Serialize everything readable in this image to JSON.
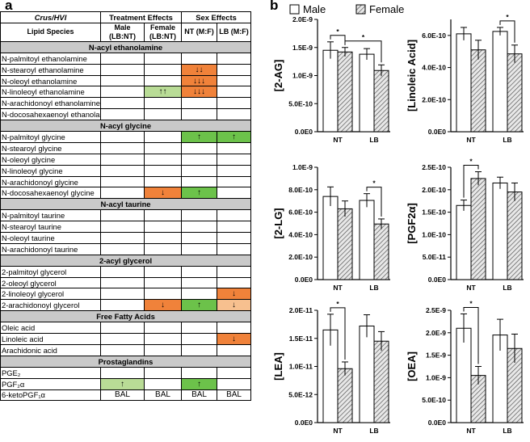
{
  "panel_a_label": "a",
  "panel_b_label": "b",
  "table": {
    "corner": "Crus/HVI",
    "group_headers": [
      "Treatment Effects",
      "Sex Effects"
    ],
    "col_header_title": "Lipid Species",
    "col_headers": [
      "Male (LB:NT)",
      "Female (LB:NT)",
      "NT (M:F)",
      "LB (M:F)"
    ],
    "rows": [
      {
        "type": "section",
        "label": "N-acyl ethanolamine"
      },
      {
        "label": "N-palmitoyl ethanolamine",
        "cells": [
          "",
          "",
          "",
          ""
        ]
      },
      {
        "label": "N-stearoyl ethanolamine",
        "cells": [
          "",
          "",
          "↓↓",
          ""
        ]
      },
      {
        "label": "N-oleoyl ethanolamine",
        "cells": [
          "",
          "",
          "↓↓↓",
          ""
        ]
      },
      {
        "label": "N-linoleoyl ethanolamine",
        "cells": [
          "",
          "↑↑",
          "↓↓↓",
          ""
        ]
      },
      {
        "label": "N-arachidonoyl ethanolamine",
        "cells": [
          "",
          "",
          "",
          ""
        ],
        "tall": true
      },
      {
        "label": "N-docosahexaenoyl ethanolamine",
        "cells": [
          "",
          "",
          "",
          ""
        ],
        "tall": true
      },
      {
        "type": "section",
        "label": "N-acyl glycine"
      },
      {
        "label": "N-palmitoyl glycine",
        "cells": [
          "",
          "",
          "↑",
          "↑"
        ]
      },
      {
        "label": "N-stearoyl glycine",
        "cells": [
          "",
          "",
          "",
          ""
        ]
      },
      {
        "label": "N-oleoyl glycine",
        "cells": [
          "",
          "",
          "",
          ""
        ]
      },
      {
        "label": "N-linoleoyl glycine",
        "cells": [
          "",
          "",
          "",
          ""
        ]
      },
      {
        "label": "N-arachidonoyl glycine",
        "cells": [
          "",
          "",
          "",
          ""
        ]
      },
      {
        "label": "N-docosahexaenoyl glycine",
        "cells": [
          "",
          "↓",
          "↑",
          ""
        ],
        "tall": true
      },
      {
        "type": "section",
        "label": "N-acyl taurine"
      },
      {
        "label": "N-palmitoyl taurine",
        "cells": [
          "",
          "",
          "",
          ""
        ]
      },
      {
        "label": "N-stearoyl taurine",
        "cells": [
          "",
          "",
          "",
          ""
        ]
      },
      {
        "label": "N-oleoyl taurine",
        "cells": [
          "",
          "",
          "",
          ""
        ]
      },
      {
        "label": "N-arachidonoyl taurine",
        "cells": [
          "",
          "",
          "",
          ""
        ]
      },
      {
        "type": "section",
        "label": "2-acyl glycerol"
      },
      {
        "label": "2-palmitoyl glycerol",
        "cells": [
          "",
          "",
          "",
          ""
        ]
      },
      {
        "label": "2-oleoyl glycerol",
        "cells": [
          "",
          "",
          "",
          ""
        ]
      },
      {
        "label": "2-linoleoyl glycerol",
        "cells": [
          "",
          "",
          "",
          "↓"
        ]
      },
      {
        "label": "2-arachidonoyl glycerol",
        "cells": [
          "",
          "↓",
          "↑",
          "↓"
        ]
      },
      {
        "type": "section",
        "label": "Free Fatty Acids"
      },
      {
        "label": "Oleic acid",
        "cells": [
          "",
          "",
          "",
          ""
        ]
      },
      {
        "label": "Linoleic acid",
        "cells": [
          "",
          "",
          "",
          "↓"
        ]
      },
      {
        "label": "Arachidonic acid",
        "cells": [
          "",
          "",
          "",
          ""
        ]
      },
      {
        "type": "section",
        "label": "Prostaglandins"
      },
      {
        "label": "PGE₂",
        "cells": [
          "",
          "",
          "",
          ""
        ]
      },
      {
        "label": "PGF₂α",
        "cells": [
          "↑",
          "",
          "↑",
          ""
        ]
      },
      {
        "label": "6-ketoPGF₁α",
        "cells": [
          "BAL",
          "BAL",
          "BAL",
          "BAL"
        ]
      }
    ],
    "cell_colors": {
      "2_2": "#f0823a",
      "3_2": "#f0823a",
      "4_1": "#b9dc96",
      "4_2": "#f0823a",
      "8_2": "#6cc24a",
      "8_3": "#6cc24a",
      "13_1": "#f0823a",
      "13_2": "#6cc24a",
      "22_3": "#f0823a",
      "23_1": "#f0823a",
      "23_2": "#6cc24a",
      "23_3": "#f7c08f",
      "26_3": "#f0823a",
      "30_0": "#b9dc96",
      "30_2": "#6cc24a"
    }
  },
  "legend": {
    "male": "Male",
    "female": "Female"
  },
  "chart_data": [
    {
      "type": "bar",
      "ylabel": "[2-AG]",
      "categories": [
        "NT",
        "LB"
      ],
      "series": [
        {
          "name": "Male",
          "values": [
            1.45e-09,
            1.38e-09
          ],
          "errors": [
            1.5e-10,
            1e-10
          ]
        },
        {
          "name": "Female",
          "values": [
            1.42e-09,
            1.09e-09
          ],
          "errors": [
            8e-11,
            1e-10
          ]
        }
      ],
      "ylim": [
        0,
        2e-09
      ],
      "ticks": [
        "0.0E0",
        "5.0E-10",
        "1.0E-9",
        "1.5E-9",
        "2.0E-9"
      ],
      "annotations": [
        "* NT Male vs NT Female",
        "* NT Female vs LB Female"
      ]
    },
    {
      "type": "bar",
      "ylabel": "[Linoleic Acid]",
      "categories": [
        "NT",
        "LB"
      ],
      "series": [
        {
          "name": "Male",
          "values": [
            6.1e-10,
            6.25e-10
          ],
          "errors": [
            4e-11,
            2.5e-11
          ]
        },
        {
          "name": "Female",
          "values": [
            5.1e-10,
            4.85e-10
          ],
          "errors": [
            6e-11,
            5.5e-11
          ]
        }
      ],
      "ylim": [
        0,
        7e-10
      ],
      "ticks": [
        "0.0E0",
        "2.0E-10",
        "4.0E-10",
        "6.0E-10"
      ],
      "annotations": [
        "* LB Male vs LB Female"
      ]
    },
    {
      "type": "bar",
      "ylabel": "[2-LG]",
      "categories": [
        "NT",
        "LB"
      ],
      "series": [
        {
          "name": "Male",
          "values": [
            7.4e-10,
            7.05e-10
          ],
          "errors": [
            8.5e-11,
            6e-11
          ]
        },
        {
          "name": "Female",
          "values": [
            6.3e-10,
            4.95e-10
          ],
          "errors": [
            7e-11,
            4.5e-11
          ]
        }
      ],
      "ylim": [
        0,
        1e-09
      ],
      "ticks": [
        "0.0E0",
        "2.0E-10",
        "4.0E-10",
        "6.0E-10",
        "8.0E-10",
        "1.0E-9"
      ],
      "annotations": [
        "* LB Male vs LB Female"
      ]
    },
    {
      "type": "bar",
      "ylabel": "[PGF2α]",
      "categories": [
        "NT",
        "LB"
      ],
      "series": [
        {
          "name": "Male",
          "values": [
            1.65e-10,
            2.15e-10
          ],
          "errors": [
            1.2e-11,
            1.3e-11
          ]
        },
        {
          "name": "Female",
          "values": [
            2.25e-10,
            1.95e-10
          ],
          "errors": [
            1.5e-11,
            2e-11
          ]
        }
      ],
      "ylim": [
        0,
        2.5e-10
      ],
      "ticks": [
        "0.0E0",
        "5.0E-11",
        "1.0E-10",
        "1.5E-10",
        "2.0E-10",
        "2.5E-10"
      ],
      "annotations": [
        "* NT Male vs NT Female"
      ]
    },
    {
      "type": "bar",
      "ylabel": "[LEA]",
      "categories": [
        "NT",
        "LB"
      ],
      "series": [
        {
          "name": "Male",
          "values": [
            1.65e-11,
            1.72e-11
          ],
          "errors": [
            2.8e-12,
            2e-12
          ]
        },
        {
          "name": "Female",
          "values": [
            9.6e-12,
            1.45e-11
          ],
          "errors": [
            1.2e-12,
            1.7e-12
          ]
        }
      ],
      "ylim": [
        0,
        2e-11
      ],
      "ticks": [
        "0.0E0",
        "5.0E-12",
        "1.0E-11",
        "1.5E-11",
        "2.0E-11"
      ],
      "annotations": [
        "* NT Male vs NT Female"
      ]
    },
    {
      "type": "bar",
      "ylabel": "[OEA]",
      "categories": [
        "NT",
        "LB"
      ],
      "series": [
        {
          "name": "Male",
          "values": [
            2.1e-09,
            1.95e-09
          ],
          "errors": [
            3.2e-10,
            3.5e-10
          ]
        },
        {
          "name": "Female",
          "values": [
            1.05e-09,
            1.65e-09
          ],
          "errors": [
            2e-10,
            3.2e-10
          ]
        }
      ],
      "ylim": [
        0,
        2.5e-09
      ],
      "ticks": [
        "0.0E0",
        "5.0E-10",
        "1.0E-9",
        "1.5E-9",
        "2.0E-9",
        "2.5E-9"
      ],
      "annotations": [
        "* NT Male vs NT Female"
      ]
    }
  ]
}
